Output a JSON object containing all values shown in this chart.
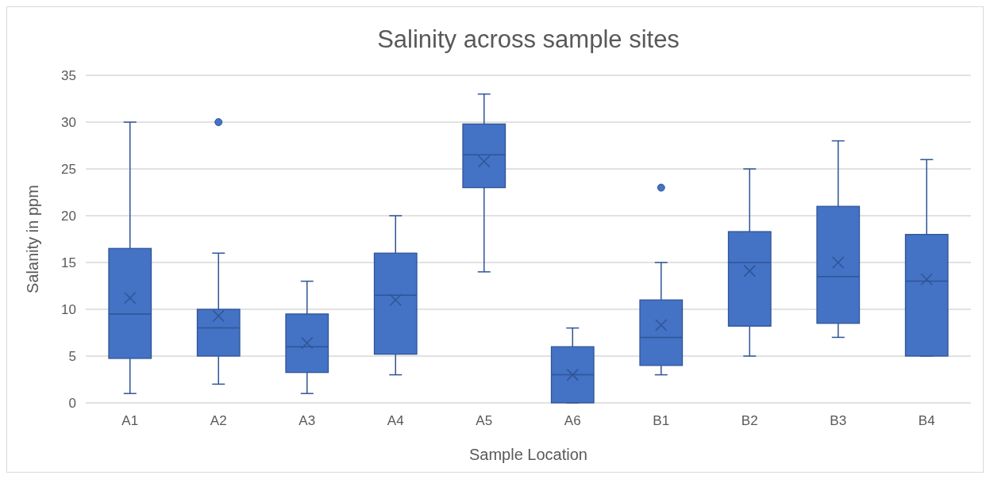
{
  "chart_data": {
    "type": "box",
    "title": "Salinity across sample sites",
    "xlabel": "Sample Location",
    "ylabel": "Salanity in ppm",
    "categories": [
      "A1",
      "A2",
      "A3",
      "A4",
      "A5",
      "A6",
      "B1",
      "B2",
      "B3",
      "B4"
    ],
    "color": "#4472c4",
    "boxes": [
      {
        "low": 1,
        "q1": 4.75,
        "median": 9.5,
        "q3": 16.5,
        "high": 30,
        "mean": 11.2
      },
      {
        "low": 2,
        "q1": 5,
        "median": 8,
        "q3": 10,
        "high": 16,
        "mean": 9.3,
        "outliers": [
          30
        ]
      },
      {
        "low": 1,
        "q1": 3.25,
        "median": 6,
        "q3": 9.5,
        "high": 13,
        "mean": 6.4
      },
      {
        "low": 3,
        "q1": 5.2,
        "median": 11.5,
        "q3": 16,
        "high": 20,
        "mean": 11
      },
      {
        "low": 14,
        "q1": 23,
        "median": 26.5,
        "q3": 29.8,
        "high": 33,
        "mean": 25.8
      },
      {
        "low": 0,
        "q1": 0,
        "median": 3,
        "q3": 6,
        "high": 8,
        "mean": 3
      },
      {
        "low": 3,
        "q1": 4,
        "median": 7,
        "q3": 11,
        "high": 15,
        "mean": 8.3,
        "outliers": [
          23
        ]
      },
      {
        "low": 5,
        "q1": 8.2,
        "median": 15,
        "q3": 18.3,
        "high": 25,
        "mean": 14.1
      },
      {
        "low": 7,
        "q1": 8.5,
        "median": 13.5,
        "q3": 21,
        "high": 28,
        "mean": 15
      },
      {
        "low": 5,
        "q1": 5,
        "median": 13,
        "q3": 18,
        "high": 26,
        "mean": 13.2
      }
    ],
    "ylim": [
      0,
      35
    ],
    "yticks": [
      0,
      5,
      10,
      15,
      20,
      25,
      30,
      35
    ],
    "grid": "y"
  }
}
